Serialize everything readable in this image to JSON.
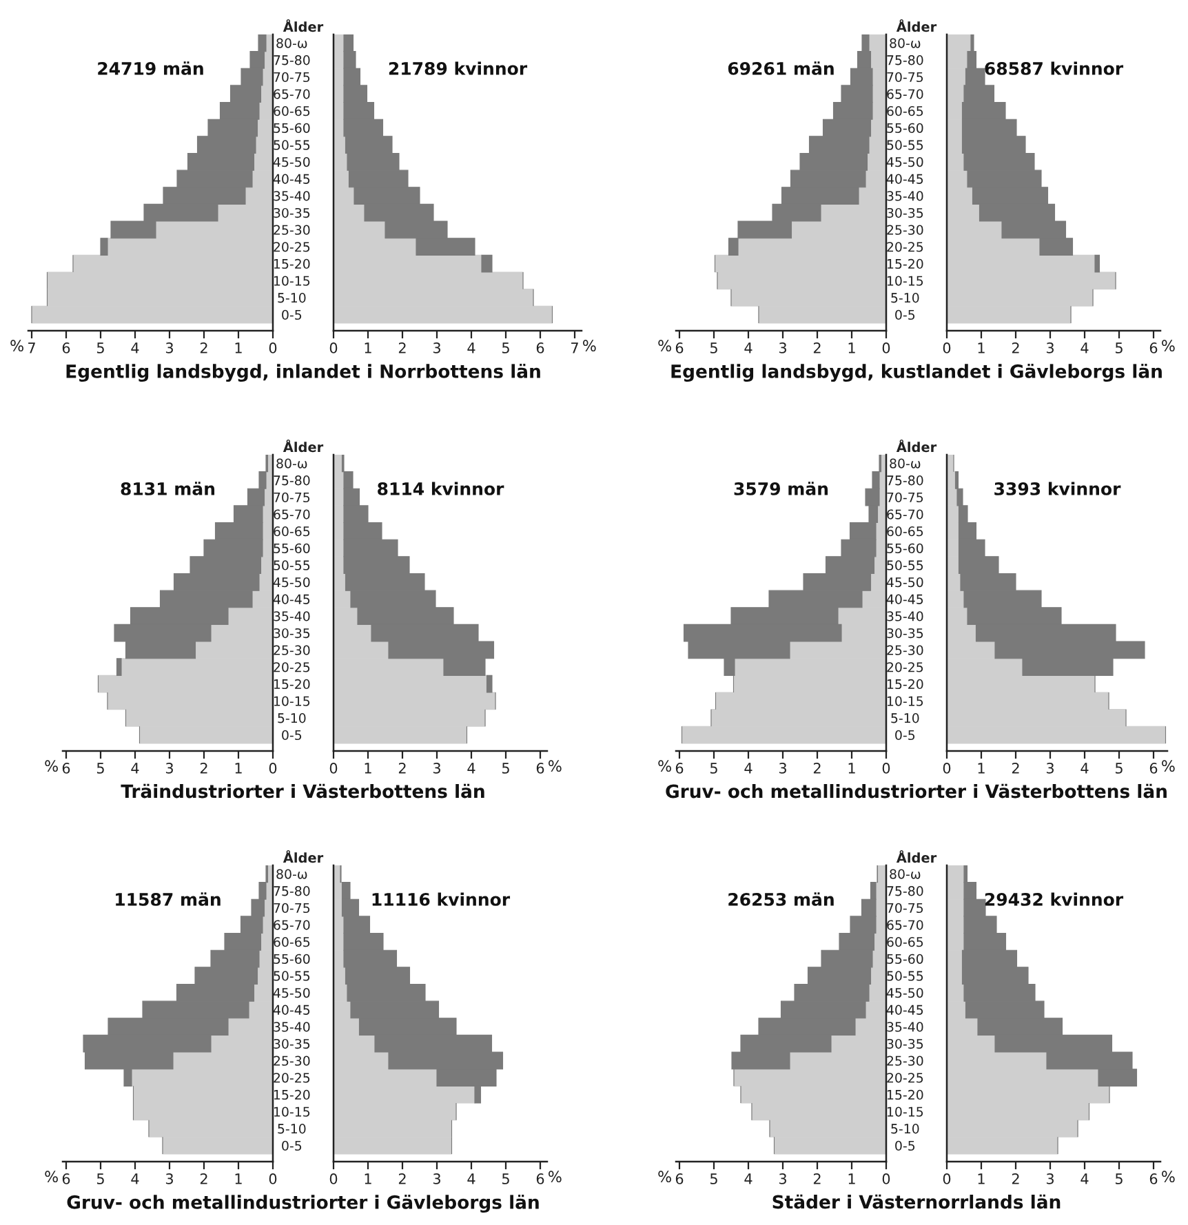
{
  "chart_data": [
    {
      "type": "bar",
      "orientation": "horizontal",
      "stacked": true,
      "title": "24719 män",
      "xlabel": "%",
      "tick_labels": "x",
      "annotations": [
        "Egentlig landsbygd, inlandet i Norrbottens län"
      ],
      "categories": [
        null,
        null,
        null,
        null,
        null,
        null,
        null,
        null,
        null,
        null,
        null,
        null,
        null,
        null,
        null,
        null,
        null
      ],
      "series": [
        {
          "color": "#cfcfcf",
          "values": [
            0.2,
            0.25,
            0.3,
            0.35,
            0.4,
            0.45,
            0.5,
            0.55,
            0.6,
            0.8,
            1.6,
            3.4,
            4.8,
            5.8,
            6.55,
            6.55,
            7.0
          ]
        },
        {
          "color": "#7a7a7a",
          "values": [
            0.22,
            0.41,
            0.62,
            0.88,
            1.13,
            1.43,
            1.69,
            1.92,
            2.18,
            2.38,
            2.14,
            1.3,
            0.2,
            0,
            0,
            0,
            0
          ]
        }
      ],
      "xlim": [
        7.1,
        0
      ],
      "xticks": [
        0,
        1,
        2,
        3,
        4,
        5,
        6,
        7
      ]
    },
    {
      "type": "bar",
      "orientation": "horizontal",
      "stacked": true,
      "title": "21789 kvinnor",
      "ylabel": "Ålder",
      "categories": [
        "80-ω",
        "75-80",
        "70-75",
        "65-70",
        "60-65",
        "55-60",
        "50-55",
        "45-50",
        "40-45",
        "35-40",
        "30-35",
        "25-30",
        "20-25",
        "15-20",
        "10-15",
        "5-10",
        "0-5"
      ],
      "series": [
        {
          "color": "#cfcfcf",
          "values": [
            0.3,
            0.3,
            0.3,
            0.3,
            0.3,
            0.3,
            0.35,
            0.4,
            0.45,
            0.6,
            0.9,
            1.5,
            2.4,
            4.3,
            5.5,
            5.8,
            6.35
          ]
        },
        {
          "color": "#7a7a7a",
          "values": [
            0.27,
            0.34,
            0.47,
            0.67,
            0.87,
            1.13,
            1.35,
            1.5,
            1.71,
            1.9,
            2.0,
            1.8,
            1.7,
            0.3,
            0,
            0,
            0
          ]
        }
      ],
      "xlabel": "%",
      "xlim": [
        0,
        7.2
      ],
      "xticks": [
        0,
        1,
        2,
        3,
        4,
        5,
        6,
        7
      ]
    },
    {
      "type": "bar",
      "orientation": "horizontal",
      "stacked": true,
      "title": "69261 män",
      "xlabel": "%",
      "tick_labels": "x",
      "annotations": [
        "Egentlig landsbygd, kustlandet i Gävleborgs län"
      ],
      "categories": [
        null,
        null,
        null,
        null,
        null,
        null,
        null,
        null,
        null,
        null,
        null,
        null,
        null,
        null,
        null,
        null,
        null
      ],
      "series": [
        {
          "color": "#cfcfcf",
          "values": [
            0.5,
            0.45,
            0.4,
            0.4,
            0.4,
            0.45,
            0.5,
            0.55,
            0.6,
            0.8,
            1.9,
            2.75,
            4.3,
            4.97,
            4.9,
            4.5,
            3.7
          ]
        },
        {
          "color": "#7a7a7a",
          "values": [
            0.2,
            0.38,
            0.63,
            0.9,
            1.13,
            1.38,
            1.73,
            1.95,
            2.17,
            2.23,
            1.4,
            1.55,
            0.27,
            0,
            0,
            0,
            0
          ]
        }
      ],
      "xlim": [
        6.1,
        0
      ],
      "xticks": [
        0,
        1,
        2,
        3,
        4,
        5,
        6
      ]
    },
    {
      "type": "bar",
      "orientation": "horizontal",
      "stacked": true,
      "title": "68587 kvinnor",
      "ylabel": "Ålder",
      "xlabel": "%",
      "categories": [
        "80-ω",
        "75-80",
        "70-75",
        "65-70",
        "60-65",
        "55-60",
        "50-55",
        "45-50",
        "40-45",
        "35-40",
        "30-35",
        "25-30",
        "20-25",
        "15-20",
        "10-15",
        "5-10",
        "0-5"
      ],
      "series": [
        {
          "color": "#cfcfcf",
          "values": [
            0.7,
            0.6,
            0.55,
            0.5,
            0.45,
            0.45,
            0.45,
            0.5,
            0.6,
            0.75,
            0.95,
            1.6,
            2.7,
            4.3,
            4.9,
            4.24,
            3.6
          ]
        },
        {
          "color": "#7a7a7a",
          "values": [
            0.08,
            0.25,
            0.55,
            0.87,
            1.25,
            1.57,
            1.83,
            2.04,
            2.14,
            2.18,
            2.18,
            1.85,
            0.95,
            0.13,
            0,
            0,
            0
          ]
        }
      ],
      "xlim": [
        0,
        6.2
      ],
      "xticks": [
        0,
        1,
        2,
        3,
        4,
        5,
        6
      ]
    },
    {
      "type": "bar",
      "orientation": "horizontal",
      "stacked": true,
      "title": "8131 män",
      "xlabel": "%",
      "tick_labels": "x",
      "annotations": [
        "Träindustriorter i Västerbottens län"
      ],
      "categories": [
        null,
        null,
        null,
        null,
        null,
        null,
        null,
        null,
        null,
        null,
        null,
        null,
        null,
        null,
        null,
        null,
        null
      ],
      "series": [
        {
          "color": "#cfcfcf",
          "values": [
            0.15,
            0.2,
            0.25,
            0.3,
            0.3,
            0.3,
            0.35,
            0.4,
            0.6,
            1.3,
            1.8,
            2.25,
            4.4,
            5.07,
            4.8,
            4.27,
            3.87
          ]
        },
        {
          "color": "#7a7a7a",
          "values": [
            0.05,
            0.2,
            0.48,
            0.83,
            1.37,
            1.7,
            2.05,
            2.47,
            2.67,
            2.83,
            2.8,
            2.02,
            0.13,
            0,
            0,
            0,
            0
          ]
        }
      ],
      "xlim": [
        6.1,
        0
      ],
      "xticks": [
        0,
        1,
        2,
        3,
        4,
        5,
        6
      ]
    },
    {
      "type": "bar",
      "orientation": "horizontal",
      "stacked": true,
      "title": "8114 kvinnor",
      "ylabel": "Ålder",
      "xlabel": "%",
      "categories": [
        "80-ω",
        "75-80",
        "70-75",
        "65-70",
        "60-65",
        "55-60",
        "50-55",
        "45-50",
        "40-45",
        "35-40",
        "30-35",
        "25-30",
        "20-25",
        "15-20",
        "10-15",
        "5-10",
        "0-5"
      ],
      "series": [
        {
          "color": "#cfcfcf",
          "values": [
            0.25,
            0.3,
            0.3,
            0.3,
            0.3,
            0.3,
            0.3,
            0.35,
            0.5,
            0.7,
            1.1,
            1.6,
            3.2,
            4.45,
            4.7,
            4.4,
            3.87
          ]
        },
        {
          "color": "#7a7a7a",
          "values": [
            0.05,
            0.26,
            0.45,
            0.7,
            1.1,
            1.56,
            1.9,
            2.29,
            2.46,
            2.78,
            3.1,
            3.05,
            1.2,
            0.15,
            0,
            0,
            0
          ]
        }
      ],
      "xlim": [
        0,
        6.2
      ],
      "xticks": [
        0,
        1,
        2,
        3,
        4,
        5,
        6
      ]
    },
    {
      "type": "bar",
      "orientation": "horizontal",
      "stacked": true,
      "title": "3579 män",
      "xlabel": "%",
      "tick_labels": "x",
      "annotations": [
        "Gruv- och metallindustriorter i Västerbottens län"
      ],
      "categories": [
        null,
        null,
        null,
        null,
        null,
        null,
        null,
        null,
        null,
        null,
        null,
        null,
        null,
        null,
        null,
        null,
        null
      ],
      "series": [
        {
          "color": "#cfcfcf",
          "values": [
            0.15,
            0.2,
            0.2,
            0.25,
            0.3,
            0.3,
            0.35,
            0.45,
            0.7,
            1.4,
            1.3,
            2.8,
            4.4,
            4.43,
            4.95,
            5.08,
            5.93
          ]
        },
        {
          "color": "#7a7a7a",
          "values": [
            0.05,
            0.2,
            0.4,
            0.25,
            0.75,
            1.0,
            1.4,
            1.95,
            2.7,
            3.1,
            4.57,
            2.94,
            0.3,
            0,
            0,
            0,
            0
          ]
        }
      ],
      "xlim": [
        6.1,
        0
      ],
      "xticks": [
        0,
        1,
        2,
        3,
        4,
        5,
        6
      ]
    },
    {
      "type": "bar",
      "orientation": "horizontal",
      "stacked": true,
      "title": "3393 kvinnor",
      "ylabel": "Ålder",
      "xlabel": "%",
      "categories": [
        "80-ω",
        "75-80",
        "70-75",
        "65-70",
        "60-65",
        "55-60",
        "50-55",
        "45-50",
        "40-45",
        "35-40",
        "30-35",
        "25-30",
        "20-25",
        "15-20",
        "10-15",
        "5-10",
        "0-5"
      ],
      "series": [
        {
          "color": "#cfcfcf",
          "values": [
            0.2,
            0.25,
            0.3,
            0.35,
            0.35,
            0.35,
            0.35,
            0.4,
            0.5,
            0.6,
            0.85,
            1.4,
            2.2,
            4.3,
            4.7,
            5.2,
            6.35
          ]
        },
        {
          "color": "#7a7a7a",
          "values": [
            0,
            0.08,
            0.16,
            0.25,
            0.5,
            0.75,
            1.15,
            1.6,
            2.24,
            2.72,
            4.05,
            4.34,
            2.62,
            0,
            0,
            0,
            0
          ]
        }
      ],
      "xlim": [
        0,
        6.4
      ],
      "xticks": [
        0,
        1,
        2,
        3,
        4,
        5,
        6
      ]
    },
    {
      "type": "bar",
      "orientation": "horizontal",
      "stacked": true,
      "title": "11587 män",
      "xlabel": "%",
      "tick_labels": "x",
      "annotations": [
        "Gruv- och metallindustriorter i Gävleborgs län"
      ],
      "categories": [
        null,
        null,
        null,
        null,
        null,
        null,
        null,
        null,
        null,
        null,
        null,
        null,
        null,
        null,
        null,
        null,
        null
      ],
      "series": [
        {
          "color": "#cfcfcf",
          "values": [
            0.15,
            0.2,
            0.25,
            0.3,
            0.35,
            0.4,
            0.45,
            0.55,
            0.7,
            1.3,
            1.8,
            2.9,
            4.1,
            4.05,
            4.05,
            3.6,
            3.2
          ]
        },
        {
          "color": "#7a7a7a",
          "values": [
            0.05,
            0.2,
            0.37,
            0.63,
            1.05,
            1.4,
            1.81,
            2.24,
            3.08,
            3.48,
            3.7,
            2.55,
            0.22,
            0,
            0,
            0,
            0
          ]
        }
      ],
      "xlim": [
        6.1,
        0
      ],
      "xticks": [
        0,
        1,
        2,
        3,
        4,
        5,
        6
      ]
    },
    {
      "type": "bar",
      "orientation": "horizontal",
      "stacked": true,
      "title": "11116 kvinnor",
      "ylabel": "Ålder",
      "xlabel": "%",
      "categories": [
        "80-ω",
        "75-80",
        "70-75",
        "65-70",
        "60-65",
        "55-60",
        "50-55",
        "45-50",
        "40-45",
        "35-40",
        "30-35",
        "25-30",
        "20-25",
        "15-20",
        "10-15",
        "5-10",
        "0-5"
      ],
      "series": [
        {
          "color": "#cfcfcf",
          "values": [
            0.2,
            0.25,
            0.25,
            0.3,
            0.3,
            0.3,
            0.35,
            0.4,
            0.5,
            0.75,
            1.2,
            1.6,
            3.0,
            4.1,
            3.56,
            3.43,
            3.43
          ]
        },
        {
          "color": "#7a7a7a",
          "values": [
            0.02,
            0.23,
            0.48,
            0.75,
            1.14,
            1.53,
            1.86,
            2.26,
            2.55,
            2.81,
            3.39,
            3.31,
            1.72,
            0.17,
            0,
            0,
            0
          ]
        }
      ],
      "xlim": [
        0,
        6.2
      ],
      "xticks": [
        0,
        1,
        2,
        3,
        4,
        5,
        6
      ]
    },
    {
      "type": "bar",
      "orientation": "horizontal",
      "stacked": true,
      "title": "26253 män",
      "xlabel": "%",
      "tick_labels": "x",
      "annotations": [
        "Städer i Västernorrlands län"
      ],
      "categories": [
        null,
        null,
        null,
        null,
        null,
        null,
        null,
        null,
        null,
        null,
        null,
        null,
        null,
        null,
        null,
        null,
        null
      ],
      "series": [
        {
          "color": "#cfcfcf",
          "values": [
            0.25,
            0.3,
            0.3,
            0.3,
            0.35,
            0.4,
            0.45,
            0.5,
            0.6,
            0.9,
            1.6,
            2.8,
            4.42,
            4.22,
            3.9,
            3.38,
            3.25
          ]
        },
        {
          "color": "#7a7a7a",
          "values": [
            0.01,
            0.15,
            0.41,
            0.74,
            1.01,
            1.48,
            1.82,
            2.16,
            2.45,
            2.8,
            2.62,
            1.68,
            0,
            0,
            0,
            0,
            0
          ]
        }
      ],
      "xlim": [
        6.1,
        0
      ],
      "xticks": [
        0,
        1,
        2,
        3,
        4,
        5,
        6
      ]
    },
    {
      "type": "bar",
      "orientation": "horizontal",
      "stacked": true,
      "title": "29432 kvinnor",
      "ylabel": "Ålder",
      "xlabel": "%",
      "categories": [
        "80-ω",
        "75-80",
        "70-75",
        "65-70",
        "60-65",
        "55-60",
        "50-55",
        "45-50",
        "40-45",
        "35-40",
        "30-35",
        "25-30",
        "20-25",
        "15-20",
        "10-15",
        "5-10",
        "0-5"
      ],
      "series": [
        {
          "color": "#cfcfcf",
          "values": [
            0.5,
            0.5,
            0.5,
            0.5,
            0.5,
            0.45,
            0.45,
            0.5,
            0.55,
            0.9,
            1.4,
            2.9,
            4.4,
            4.72,
            4.13,
            3.8,
            3.22
          ]
        },
        {
          "color": "#7a7a7a",
          "values": [
            0.09,
            0.35,
            0.62,
            0.94,
            1.21,
            1.58,
            1.91,
            2.06,
            2.27,
            2.45,
            3.39,
            2.48,
            1.11,
            0,
            0,
            0,
            0
          ]
        }
      ],
      "xlim": [
        0,
        6.2
      ],
      "xticks": [
        0,
        1,
        2,
        3,
        4,
        5,
        6
      ]
    }
  ]
}
